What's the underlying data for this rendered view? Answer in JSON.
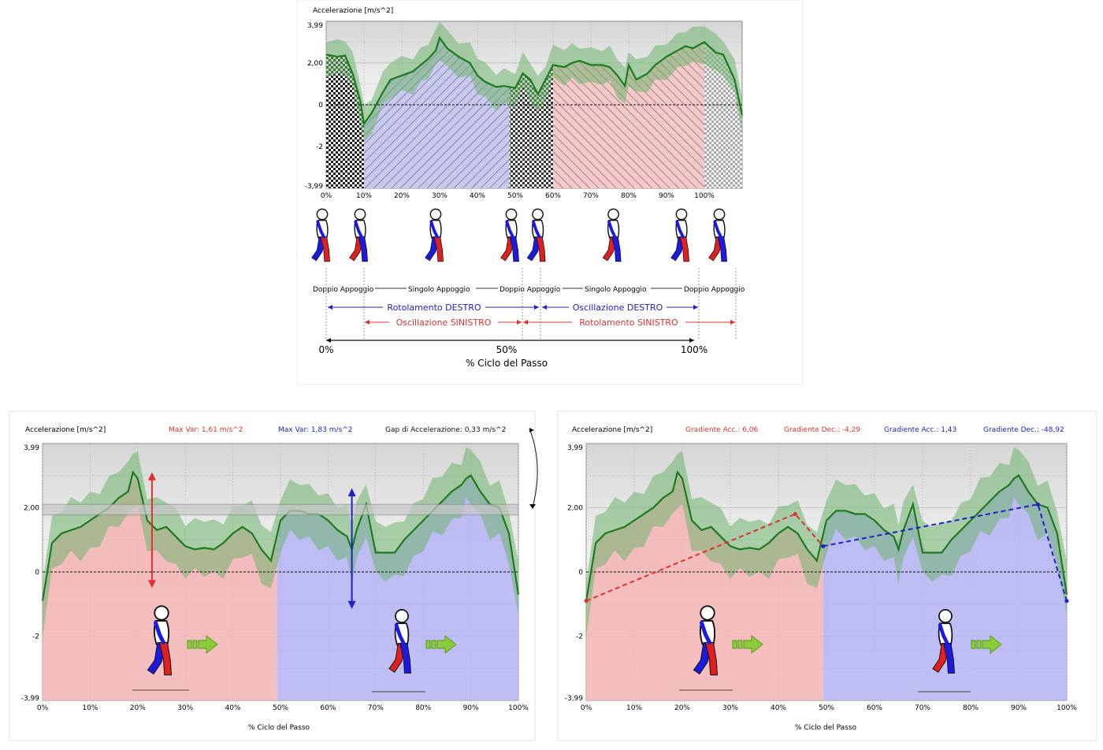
{
  "top": {
    "ylabel": "Accelerazione [m/s^2]",
    "xlabel": "% Ciclo del Passo",
    "yticks": [
      "3,99",
      "2,00",
      "0",
      "-2",
      "-3,99"
    ],
    "xticks": [
      "0%",
      "10%",
      "20%",
      "30%",
      "40%",
      "50%",
      "60%",
      "70%",
      "80%",
      "90%",
      "100%"
    ],
    "phase_labels": {
      "dbl1": "Doppio Appoggio",
      "sgl1": "Singolo Appoggio",
      "dbl2": "Doppio Appoggio",
      "sgl2": "Singolo Appoggio",
      "dbl3": "Doppio Appoggio",
      "rot_dx": "Rotolamento DESTRO",
      "osc_dx": "Oscillazione DESTRO",
      "osc_sx": "Oscillazione SINISTRO",
      "rot_sx": "Rotolamento SINISTRO"
    },
    "cycle_ticks": [
      "0%",
      "50%",
      "100%"
    ]
  },
  "left": {
    "ylabel": "Accelerazione [m/s^2]",
    "xlabel": "% Ciclo del Passo",
    "max_var_red": "Max Var: 1,61 m/s^2",
    "max_var_blue": "Max Var: 1,83 m/s^2",
    "gap": "Gap di Accelerazione: 0,33 m/s^2"
  },
  "right": {
    "ylabel": "Accelerazione [m/s^2]",
    "xlabel": "% Ciclo del Passo",
    "grad_acc_red": "Gradiente Acc.: 6,06",
    "grad_dec_red": "Gradiente Dec.: -4,29",
    "grad_acc_blue": "Gradiente Acc.: 1,43",
    "grad_dec_blue": "Gradiente Dec.: -48,92"
  },
  "colors": {
    "mean_line": "#1e7a1e",
    "band": "#6fb46f",
    "red": "#e03030",
    "blue": "#2020c8",
    "red_fill": "#f4b4b4",
    "blue_fill": "#b4b4f4"
  },
  "chart_data": [
    {
      "type": "area",
      "ylabel": "Accelerazione [m/s^2]",
      "xlabel": "",
      "ylim": [
        -3.99,
        3.99
      ],
      "xlim": [
        0,
        110
      ],
      "x": [
        0,
        3,
        5,
        7,
        9,
        10,
        12,
        15,
        17,
        20,
        23,
        25,
        27,
        29,
        30,
        32,
        35,
        38,
        40,
        42,
        45,
        47,
        50,
        52,
        54,
        56,
        58,
        60,
        63,
        65,
        67,
        70,
        73,
        75,
        77,
        79,
        80,
        82,
        85,
        87,
        90,
        93,
        95,
        97,
        100,
        103,
        105,
        108,
        110
      ],
      "series": [
        {
          "values": [
            2.4,
            2.3,
            2.35,
            1.5,
            0.2,
            -0.9,
            -0.4,
            0.6,
            1.2,
            1.4,
            1.6,
            1.9,
            2.2,
            2.6,
            3.2,
            2.7,
            2.3,
            2.0,
            1.4,
            1.1,
            0.85,
            0.9,
            0.8,
            1.5,
            1.2,
            0.5,
            1.2,
            1.9,
            1.8,
            2.0,
            2.1,
            1.9,
            1.9,
            1.8,
            1.4,
            0.9,
            1.9,
            1.2,
            1.5,
            1.9,
            2.3,
            2.6,
            2.8,
            2.7,
            3.0,
            2.5,
            2.4,
            1.2,
            -0.5
          ]
        }
      ]
    },
    {
      "type": "area",
      "ylabel": "Accelerazione [m/s^2]",
      "xlabel": "% Ciclo del Passo",
      "ylim": [
        -3.99,
        3.99
      ],
      "xlim": [
        0,
        100
      ],
      "x": [
        0,
        2,
        4,
        6,
        8,
        10,
        12,
        14,
        16,
        18,
        19,
        20,
        22,
        24,
        26,
        28,
        30,
        32,
        34,
        36,
        38,
        40,
        42,
        44,
        46,
        48,
        50,
        52,
        54,
        56,
        58,
        60,
        62,
        64,
        65,
        66,
        68,
        70,
        72,
        74,
        76,
        78,
        80,
        82,
        84,
        86,
        88,
        89,
        90,
        92,
        94,
        96,
        98,
        100
      ],
      "series": [
        {
          "values": [
            -0.9,
            0.9,
            1.2,
            1.3,
            1.4,
            1.6,
            1.8,
            2.0,
            2.3,
            2.5,
            3.1,
            2.9,
            1.6,
            1.3,
            1.4,
            1.1,
            0.8,
            0.7,
            0.75,
            0.7,
            0.9,
            1.2,
            1.4,
            1.2,
            0.7,
            0.35,
            1.6,
            1.9,
            1.9,
            1.8,
            1.8,
            1.6,
            1.3,
            1.1,
            0.7,
            1.3,
            2.1,
            0.6,
            0.6,
            0.6,
            1.0,
            1.3,
            1.6,
            1.9,
            2.2,
            2.5,
            2.7,
            2.9,
            3.0,
            2.5,
            2.1,
            2.0,
            1.2,
            -0.7
          ]
        }
      ]
    },
    {
      "type": "area",
      "ylabel": "Accelerazione [m/s^2]",
      "xlabel": "% Ciclo del Passo",
      "ylim": [
        -3.99,
        3.99
      ],
      "xlim": [
        0,
        100
      ],
      "x": [
        0,
        2,
        4,
        6,
        8,
        10,
        12,
        14,
        16,
        18,
        19,
        20,
        22,
        24,
        26,
        28,
        30,
        32,
        34,
        36,
        38,
        40,
        42,
        44,
        46,
        48,
        50,
        52,
        54,
        56,
        58,
        60,
        62,
        64,
        65,
        66,
        68,
        70,
        72,
        74,
        76,
        78,
        80,
        82,
        84,
        86,
        88,
        89,
        90,
        92,
        94,
        96,
        98,
        100
      ],
      "series": [
        {
          "values": [
            -0.9,
            0.9,
            1.2,
            1.3,
            1.4,
            1.6,
            1.8,
            2.0,
            2.3,
            2.5,
            3.1,
            2.9,
            1.6,
            1.3,
            1.4,
            1.1,
            0.8,
            0.7,
            0.75,
            0.7,
            0.9,
            1.2,
            1.4,
            1.2,
            0.7,
            0.35,
            1.6,
            1.9,
            1.9,
            1.8,
            1.8,
            1.6,
            1.3,
            1.1,
            0.7,
            1.3,
            2.1,
            0.6,
            0.6,
            0.6,
            1.0,
            1.3,
            1.6,
            1.9,
            2.2,
            2.5,
            2.7,
            2.9,
            3.0,
            2.5,
            2.1,
            2.0,
            1.2,
            -0.7
          ]
        }
      ]
    }
  ]
}
